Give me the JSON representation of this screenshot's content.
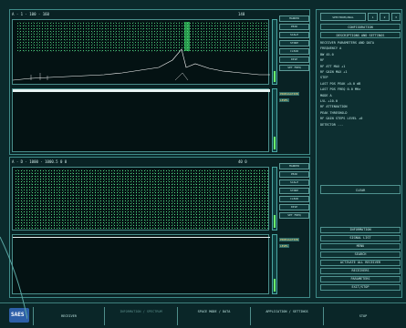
{
  "window": {
    "title": "SAES"
  },
  "top_scope": {
    "title_left": "A · 1 · 100 · 160",
    "title_right": "140",
    "side_buttons": [
      "MARKER",
      "PEAK",
      "SCALE",
      "STORE",
      "CLEAR",
      "DISP",
      "SET FREQ"
    ],
    "waterfall_tags": [
      "PROPAGATION",
      "LEVEL"
    ]
  },
  "bottom_scope": {
    "title_left": "A · D · 1000 · 1000.5 0 0",
    "title_right": "40 0",
    "side_buttons": [
      "MARKER",
      "PEAK",
      "SCALE",
      "STORE",
      "CLEAR",
      "DISP",
      "SET FREQ"
    ],
    "waterfall_tags": [
      "PROPAGATION",
      "LEVEL"
    ]
  },
  "right_panel": {
    "header_tabs": [
      "SPECTRUM/ANAL",
      "1",
      "2",
      "3"
    ],
    "section1": "CONFIGURATION",
    "section2": "DESCRIPTIONS AND SETTINGS",
    "info_lines": [
      "RECEIVER PARAMETERS AND DATA",
      "FREQUENCY  A",
      "BW          45.0",
      "RF",
      "RF ATT MAX      +1",
      "RF GAIN MAX       +1",
      "STEP",
      "LAST POS PEAK   +0.0 dB",
      "LAST POS FREQ   0.0 MHz",
      "MODE A",
      "LVL            +10.0",
      "RF ATTENUATION",
      "PEAK THRESHOLD",
      "RF GAIN STEPS LEVEL   +0",
      "DETECTOR      ---"
    ],
    "mid_button": "CLEAR",
    "list_buttons": [
      "INFORMATION",
      "SIGNAL LIST",
      "MENU",
      "SEARCH",
      "ACTIVATE ALL RECEIVER",
      "RECEIVERS",
      "PARAMETERS",
      "EXIT/STOP"
    ]
  },
  "bottom_bar": {
    "logo": "SAES",
    "buttons": [
      "RECEIVER",
      "INFORMATION / SPECTRUM",
      "SPACE MODE / DATA",
      "APPLICATION / SETTINGS",
      "STOP"
    ]
  },
  "colors": {
    "accent": "#47ff7a",
    "background": "#0b2a2c",
    "tag": "#ffdb7b"
  }
}
